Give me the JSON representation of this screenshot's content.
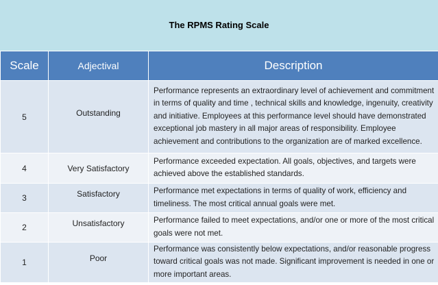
{
  "title": "The RPMS Rating Scale",
  "headers": {
    "scale": "Scale",
    "adjectival": "Adjectival",
    "description": "Description"
  },
  "rows": [
    {
      "scale": "5",
      "adjectival": "Outstanding",
      "description": "Performance represents an extraordinary level of achievement and commitment in terms of quality and time , technical skills and knowledge, ingenuity, creativity and initiative. Employees at  this performance  level should have demonstrated exceptional job mastery in all major areas of responsibility. Employee achievement and contributions to the organization  are of marked excellence."
    },
    {
      "scale": "4",
      "adjectival": "Very Satisfactory",
      "description": "Performance exceeded expectation. All goals, objectives, and targets were  achieved above the established standards."
    },
    {
      "scale": "3",
      "adjectival": "Satisfactory",
      "description": "Performance  met expectations in terms of quality of work, efficiency and timeliness. The most critical annual goals were met."
    },
    {
      "scale": "2",
      "adjectival": "Unsatisfactory",
      "description": "Performance failed to meet expectations,  and/or  one or more of the most critical goals  were not met."
    },
    {
      "scale": "1",
      "adjectival": "Poor",
      "description": "Performance was consistently below expectations, and/or reasonable progress toward  critical goals was not made. Significant improvement is needed in one or more important areas."
    }
  ]
}
